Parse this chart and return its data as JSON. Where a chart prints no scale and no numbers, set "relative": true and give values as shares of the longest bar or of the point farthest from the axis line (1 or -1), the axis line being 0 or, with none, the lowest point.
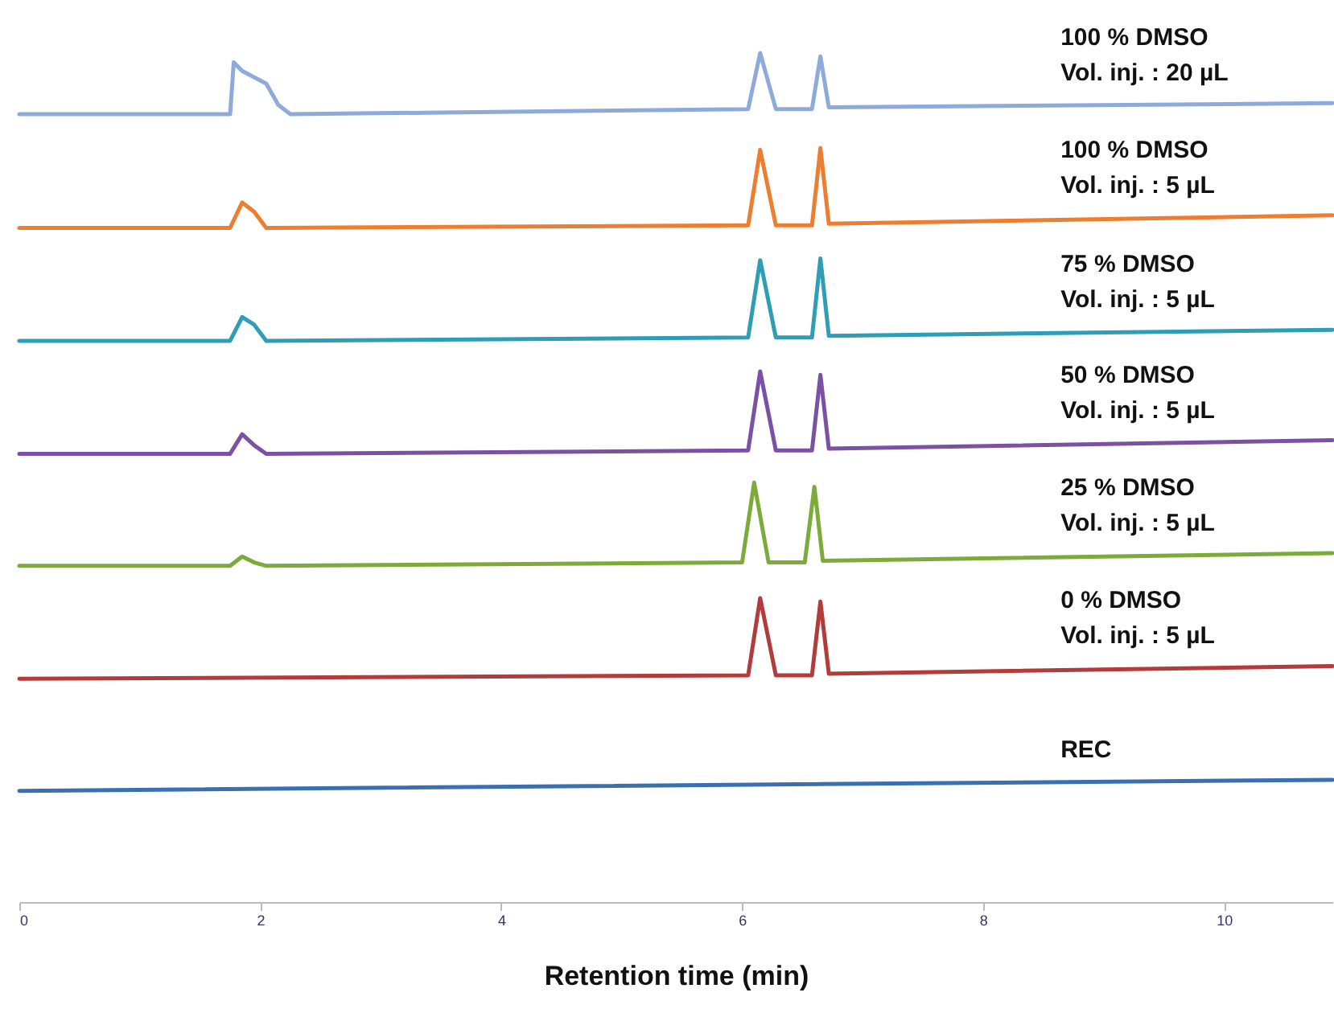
{
  "chart_data": {
    "type": "line",
    "relative": true,
    "xlabel": "Retention time (min)",
    "xlim": [
      0,
      10.9
    ],
    "xticks": [
      0,
      2,
      4,
      6,
      8,
      10
    ],
    "series": [
      {
        "name": "100 % DMSO\nVol. inj. : 20 µL",
        "color": "#8eaadb",
        "x": [
          0,
          1.75,
          1.78,
          1.85,
          2.05,
          2.15,
          2.25,
          6.05,
          6.15,
          6.28,
          6.58,
          6.65,
          6.72,
          10.9
        ],
        "values": [
          0.928,
          0.928,
          0.989,
          0.979,
          0.964,
          0.939,
          0.928,
          0.934,
          1,
          0.934,
          0.934,
          0.996,
          0.936,
          0.941
        ]
      },
      {
        "name": "100 % DMSO\nVol. inj. : 5 µL",
        "color": "#ed7d31",
        "x": [
          0,
          1.75,
          1.85,
          1.95,
          2.05,
          6.05,
          6.15,
          6.28,
          6.58,
          6.65,
          6.72,
          10.9
        ],
        "values": [
          0.794,
          0.794,
          0.824,
          0.813,
          0.794,
          0.797,
          0.886,
          0.797,
          0.797,
          0.888,
          0.799,
          0.809
        ]
      },
      {
        "name": "75 % DMSO\nVol. inj. : 5 µL",
        "color": "#2f9db6",
        "x": [
          0,
          1.75,
          1.85,
          1.95,
          2.05,
          6.05,
          6.15,
          6.28,
          6.58,
          6.65,
          6.72,
          10.9
        ],
        "values": [
          0.661,
          0.661,
          0.689,
          0.68,
          0.661,
          0.665,
          0.756,
          0.665,
          0.665,
          0.758,
          0.667,
          0.674
        ]
      },
      {
        "name": "50 % DMSO\nVol. inj. : 5 µL",
        "color": "#7b52a3",
        "x": [
          0,
          1.75,
          1.85,
          1.95,
          2.05,
          6.05,
          6.15,
          6.28,
          6.58,
          6.65,
          6.72,
          10.9
        ],
        "values": [
          0.528,
          0.528,
          0.551,
          0.538,
          0.528,
          0.532,
          0.625,
          0.532,
          0.532,
          0.621,
          0.534,
          0.544
        ]
      },
      {
        "name": "25 % DMSO\nVol. inj. : 5 µL",
        "color": "#7dab3b",
        "x": [
          0,
          1.75,
          1.85,
          1.95,
          2.05,
          6.0,
          6.1,
          6.22,
          6.52,
          6.6,
          6.67,
          10.9
        ],
        "values": [
          0.396,
          0.396,
          0.407,
          0.4,
          0.396,
          0.4,
          0.494,
          0.4,
          0.4,
          0.489,
          0.402,
          0.411
        ]
      },
      {
        "name": "0 % DMSO\nVol. inj. : 5 µL",
        "color": "#b23b3b",
        "x": [
          0,
          6.05,
          6.15,
          6.28,
          6.58,
          6.65,
          6.72,
          10.9
        ],
        "values": [
          0.263,
          0.267,
          0.358,
          0.267,
          0.267,
          0.354,
          0.269,
          0.278
        ]
      },
      {
        "name": "REC",
        "color": "#3a6fb0",
        "x": [
          0,
          10.9
        ],
        "values": [
          0.131,
          0.144
        ]
      }
    ]
  }
}
